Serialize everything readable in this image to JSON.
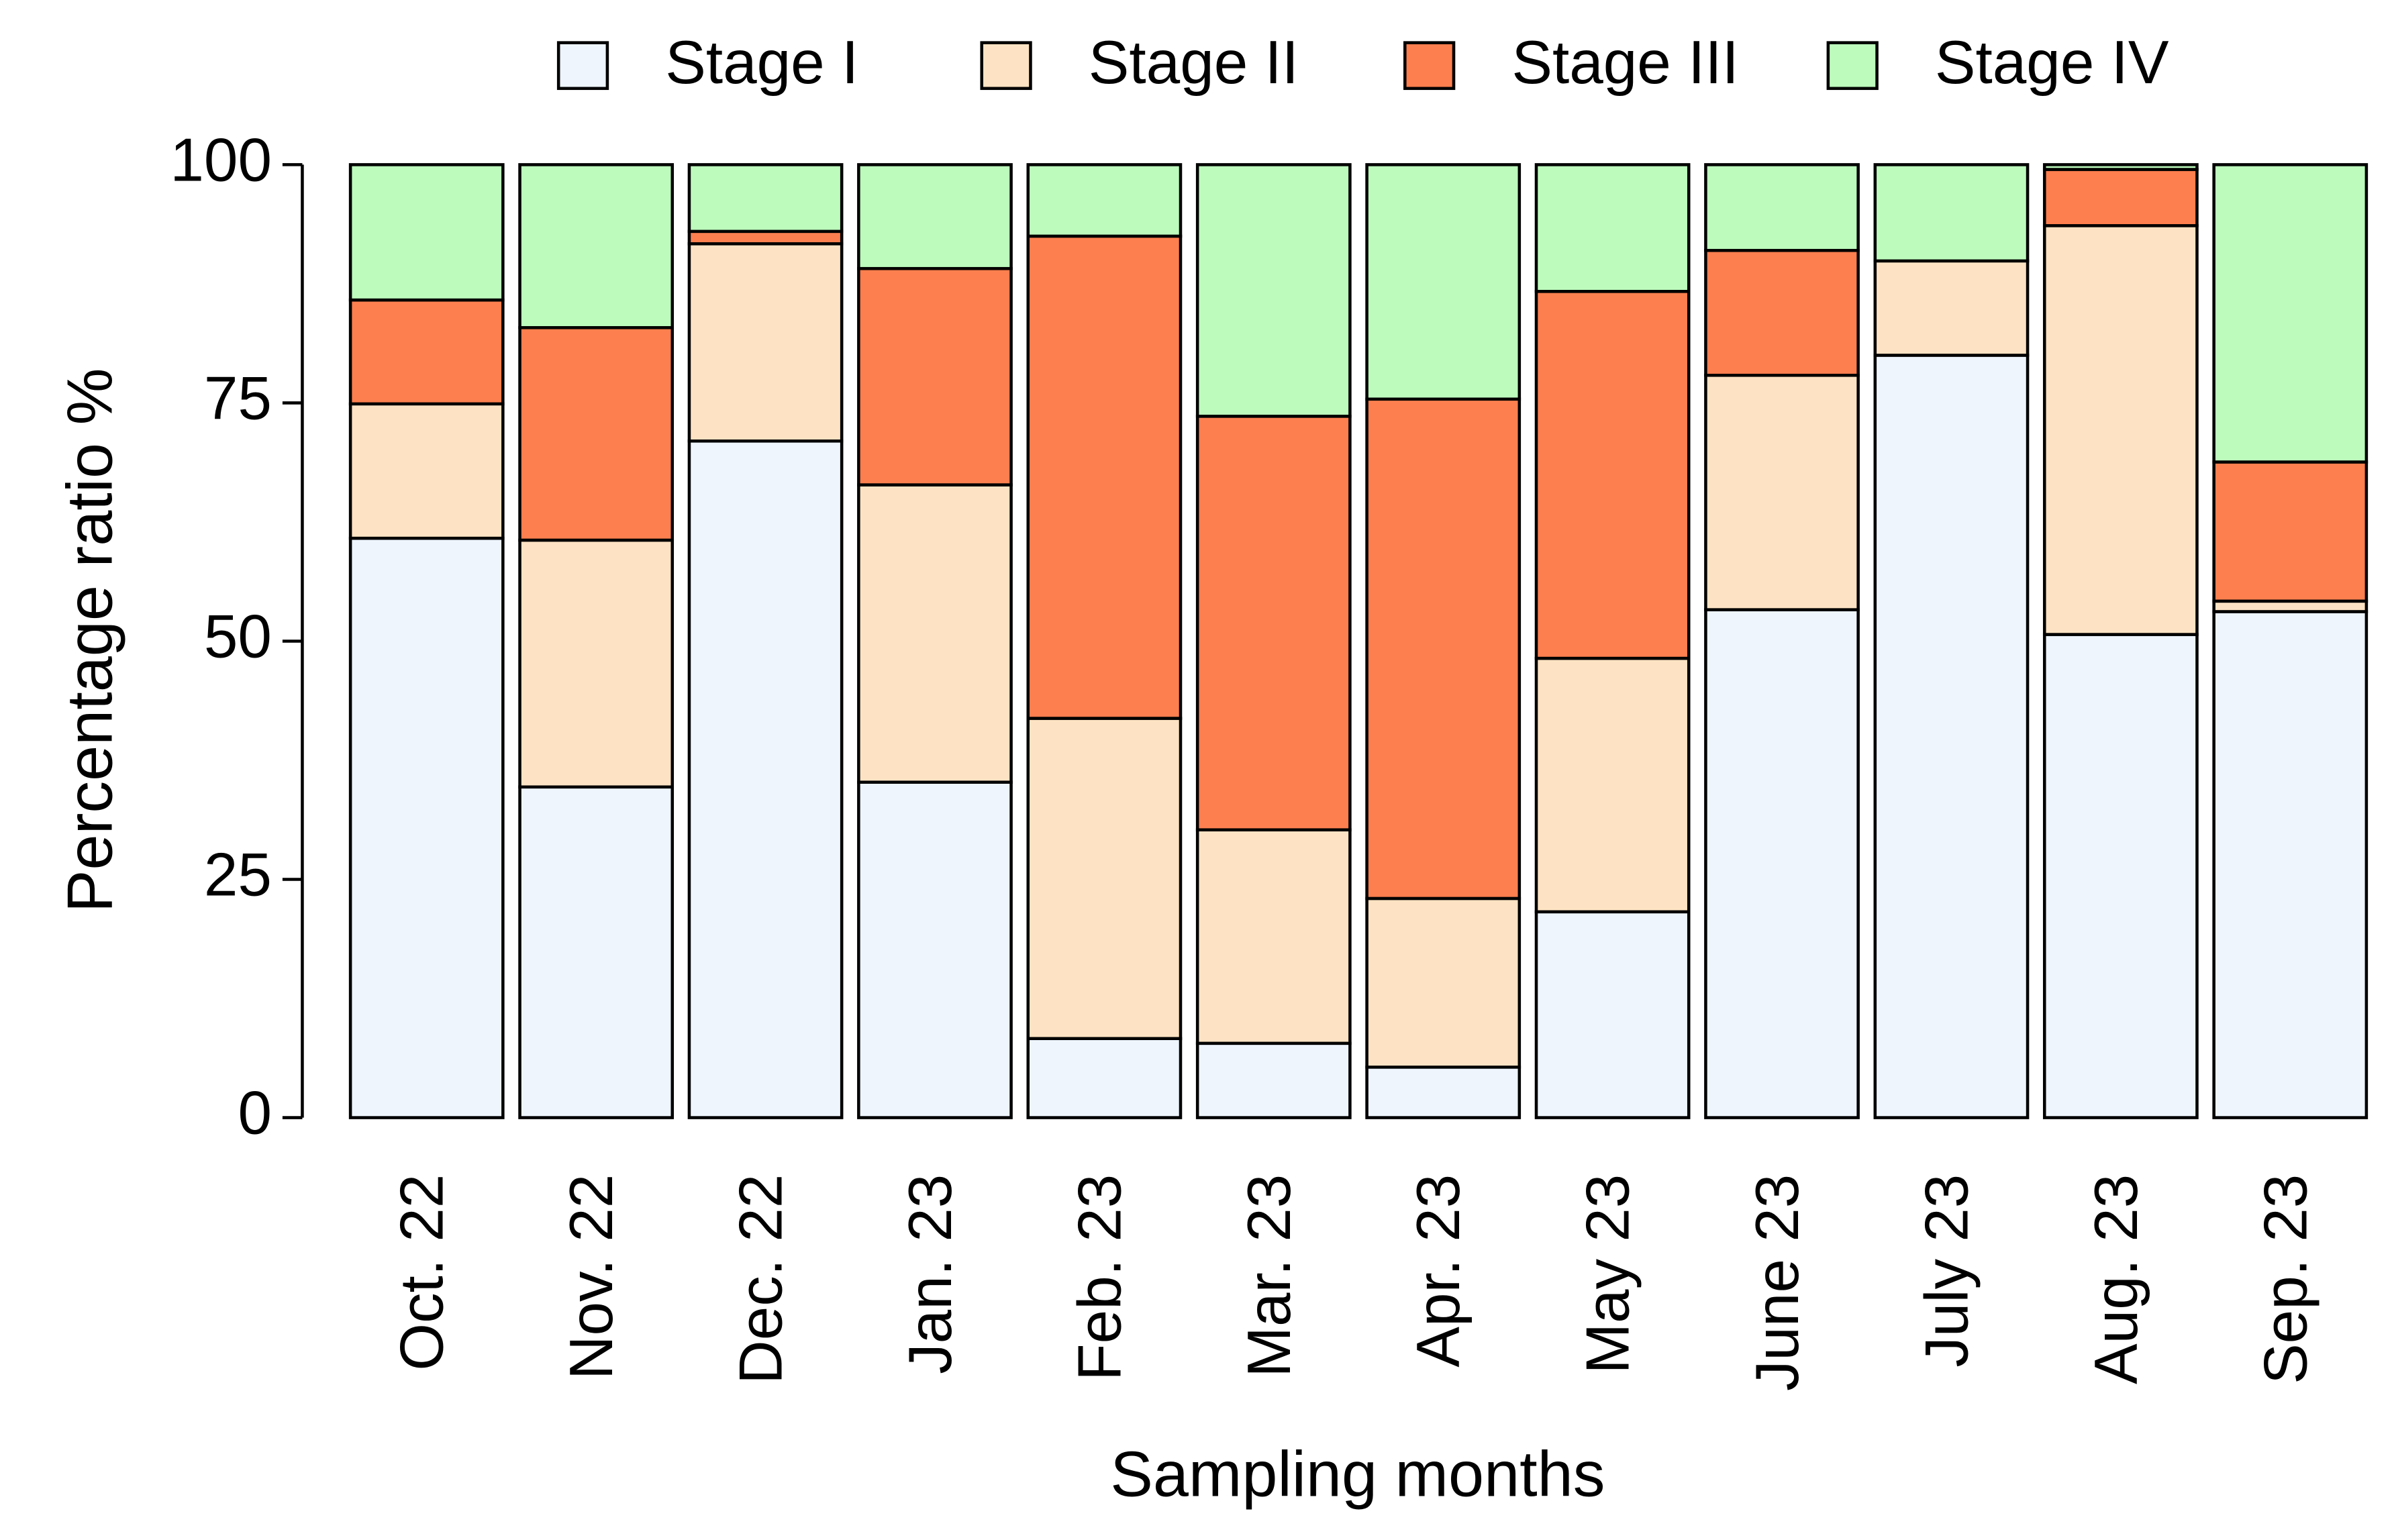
{
  "chart_data": {
    "type": "stacked-bar",
    "x_label": "Sampling months",
    "y_label": "Percentage ratio %",
    "categories": [
      "Oct. 22",
      "Nov. 22",
      "Dec. 22",
      "Jan. 23",
      "Feb. 23",
      "Mar. 23",
      "Apr. 23",
      "May 23",
      "June 23",
      "July 23",
      "Aug. 23",
      "Sep. 23"
    ],
    "series": [
      {
        "name": "Stage I",
        "color": "#eef5fd",
        "values": [
          60.8,
          34.7,
          71.0,
          35.2,
          8.3,
          7.8,
          5.3,
          21.6,
          53.3,
          80.0,
          50.7,
          53.1
        ]
      },
      {
        "name": "Stage II",
        "color": "#fde3c3",
        "values": [
          14.1,
          25.9,
          20.7,
          31.2,
          33.6,
          22.4,
          17.7,
          26.6,
          24.6,
          9.9,
          42.9,
          1.1
        ]
      },
      {
        "name": "Stage III",
        "color": "#fd7f4f",
        "values": [
          10.9,
          22.3,
          1.3,
          22.7,
          50.6,
          43.4,
          52.4,
          38.5,
          13.1,
          0,
          5.9,
          14.6
        ]
      },
      {
        "name": "Stage IV",
        "color": "#bdfbbd",
        "values": [
          14.2,
          17.1,
          7.0,
          10.9,
          7.5,
          26.4,
          24.6,
          13.3,
          9.0,
          10.1,
          0.5,
          31.2
        ]
      }
    ],
    "ylim": [
      0,
      100
    ],
    "yticks": [
      0,
      25,
      50,
      75,
      100
    ],
    "legend": "top"
  }
}
